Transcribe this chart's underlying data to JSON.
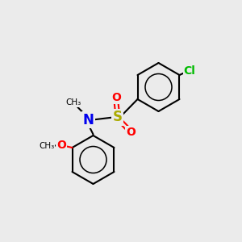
{
  "background_color": "#ebebeb",
  "bond_color": "#000000",
  "bond_width": 1.5,
  "atoms": {
    "Cl": {
      "color": "#00bb00",
      "fontsize": 10,
      "fontweight": "bold"
    },
    "S": {
      "color": "#aaaa00",
      "fontsize": 12,
      "fontweight": "bold"
    },
    "O": {
      "color": "#ff0000",
      "fontsize": 10,
      "fontweight": "bold"
    },
    "N": {
      "color": "#0000ee",
      "fontsize": 12,
      "fontweight": "bold"
    },
    "Me": {
      "color": "#000000",
      "fontsize": 8
    },
    "OMe_O": {
      "color": "#ff0000",
      "fontsize": 10,
      "fontweight": "bold"
    },
    "OMe_C": {
      "color": "#000000",
      "fontsize": 8
    }
  },
  "figsize": [
    3.0,
    3.0
  ],
  "dpi": 100
}
